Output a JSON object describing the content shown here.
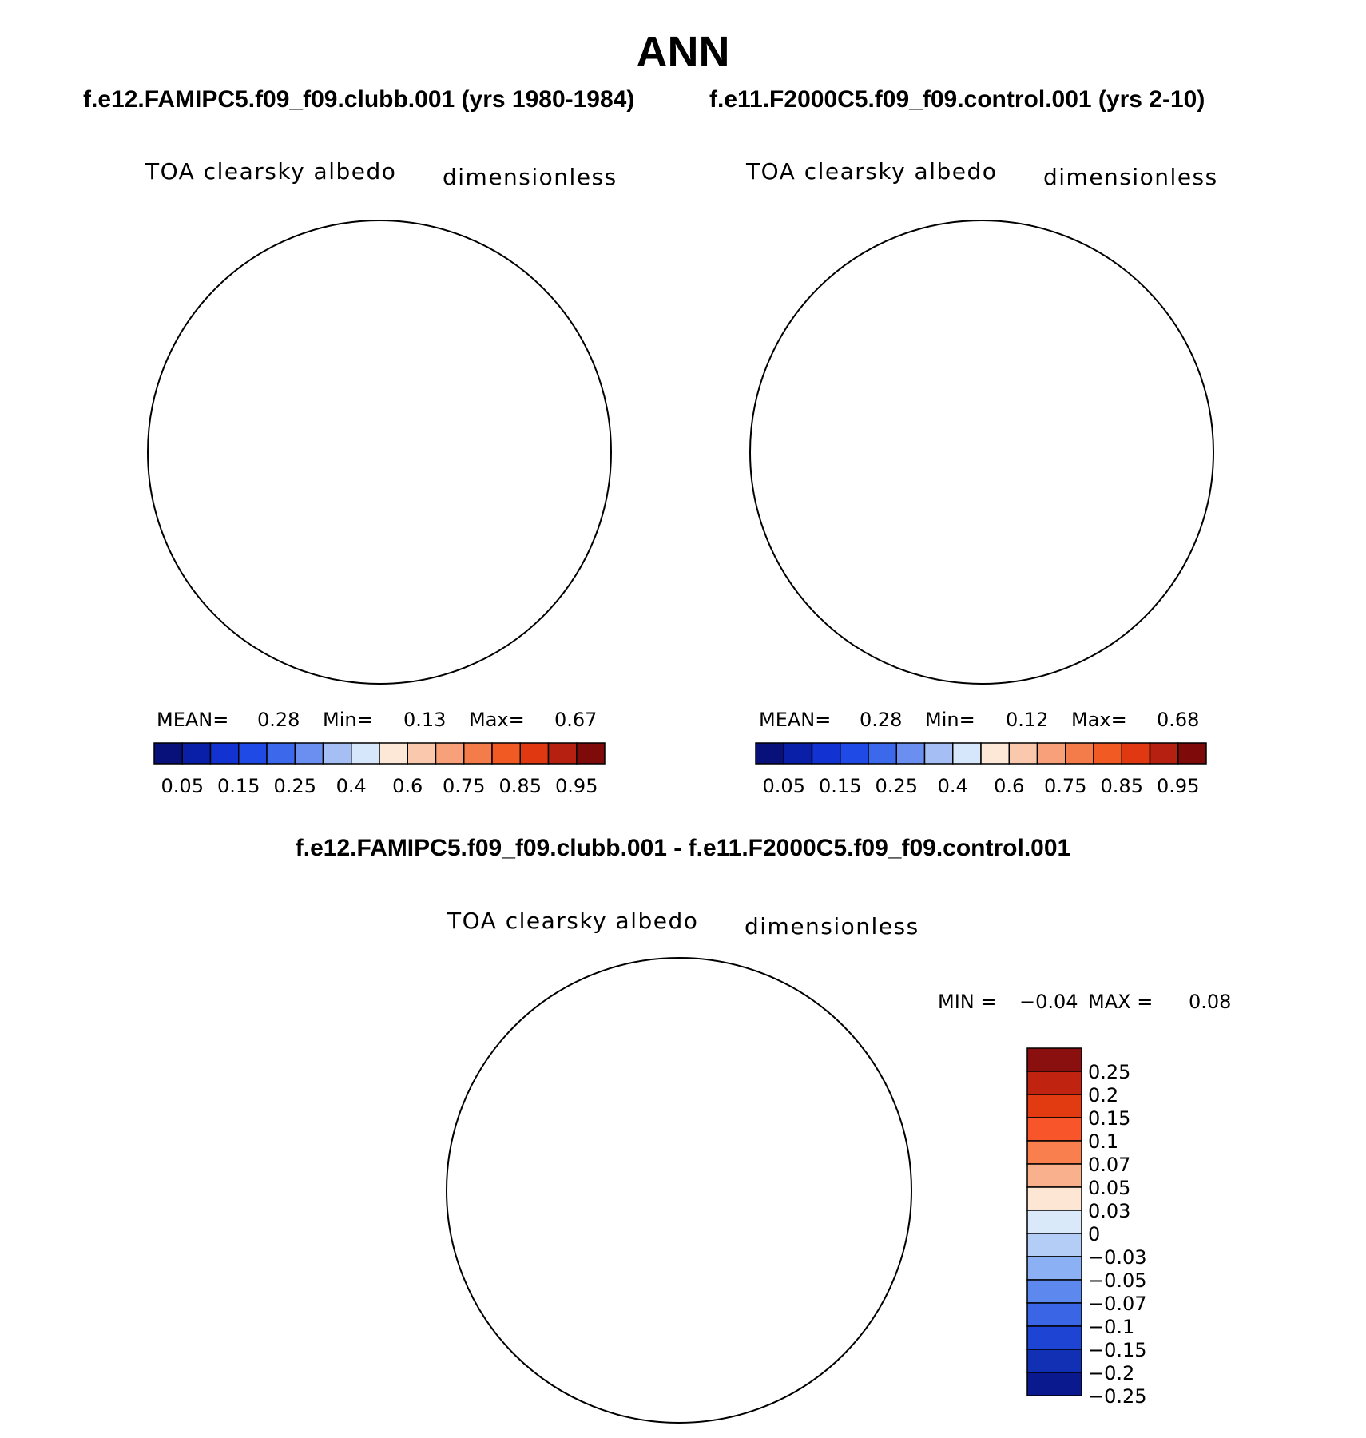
{
  "title": "ANN",
  "panels": [
    {
      "case_title": "f.e12.FAMIPC5.f09_f09.clubb.001 (yrs 1980-1984)",
      "variable": "TOA clearsky albedo",
      "units": "dimensionless",
      "mean_label": "MEAN=",
      "mean": "0.28",
      "min_label": "Min=",
      "min": "0.13",
      "max_label": "Max=",
      "max": "0.67"
    },
    {
      "case_title": "f.e11.F2000C5.f09_f09.control.001 (yrs 2-10)",
      "variable": "TOA clearsky albedo",
      "units": "dimensionless",
      "mean_label": "MEAN=",
      "mean": "0.28",
      "min_label": "Min=",
      "min": "0.12",
      "max_label": "Max=",
      "max": "0.68"
    }
  ],
  "colorbar": {
    "colors": [
      "#08107a",
      "#0a1fa8",
      "#1233d2",
      "#1f4ae6",
      "#3c68ec",
      "#6a8ff0",
      "#a5bff4",
      "#d6e6fb",
      "#fde7d6",
      "#fac9ad",
      "#f7a07a",
      "#f47b4a",
      "#f15a22",
      "#e03912",
      "#b62010",
      "#7e0a0a"
    ],
    "labels": [
      "0.05",
      "0.15",
      "0.25",
      "0.4",
      "0.6",
      "0.75",
      "0.85",
      "0.95"
    ]
  },
  "diff": {
    "title": "f.e12.FAMIPC5.f09_f09.clubb.001 - f.e11.F2000C5.f09_f09.control.001",
    "variable": "TOA clearsky albedo",
    "units": "dimensionless",
    "min_label": "MIN =",
    "min": "−0.04",
    "max_label": "MAX =",
    "max": "0.08",
    "colorbar": {
      "colors": [
        "#8a0f0f",
        "#c0230f",
        "#e23b12",
        "#f8562a",
        "#f97f4e",
        "#f9b08c",
        "#fde6d4",
        "#d9e9fa",
        "#b3cdf6",
        "#8bb0f4",
        "#5d89ee",
        "#3a66e6",
        "#1e44d4",
        "#1230b3",
        "#0a1a8e"
      ],
      "labels": [
        "0.25",
        "0.2",
        "0.15",
        "0.1",
        "0.07",
        "0.05",
        "0.03",
        "0",
        "−0.03",
        "−0.05",
        "−0.07",
        "−0.1",
        "−0.15",
        "−0.2",
        "−0.25"
      ]
    }
  },
  "colors": {
    "ocean_low": "#1233d2",
    "ocean_mid": "#3c68ec",
    "land": "#6a8ff0",
    "ice_edge": "#a5bff4",
    "sea_ice": "#d6e6fb",
    "ice_core": "#fde7d6",
    "greenland": "#fac9ad",
    "diff_bg": "#fde6d4",
    "diff_neg": "#d9e9fa",
    "diff_neg2": "#b3cdf6",
    "diff_pos": "#f9b08c"
  }
}
